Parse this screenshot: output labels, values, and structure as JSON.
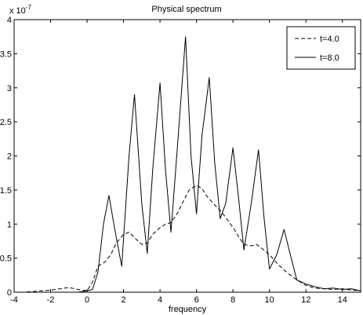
{
  "chart_data": {
    "type": "line",
    "title": "Physical spectrum",
    "xlabel": "frequency",
    "ylabel": "",
    "xlim": [
      -4,
      15
    ],
    "ylim": [
      0,
      4
    ],
    "y_multiplier_label": "x 10",
    "y_multiplier_exponent": "-7",
    "xticks": [
      "-4",
      "-2",
      "0",
      "2",
      "4",
      "6",
      "8",
      "10",
      "12",
      "14"
    ],
    "xtick_values": [
      -4,
      -2,
      0,
      2,
      4,
      6,
      8,
      10,
      12,
      14
    ],
    "yticks": [
      "0",
      "0.5",
      "1",
      "1.5",
      "2",
      "2.5",
      "3",
      "3.5",
      "4"
    ],
    "ytick_values": [
      0,
      0.5,
      1,
      1.5,
      2,
      2.5,
      3,
      3.5,
      4
    ],
    "grid": false,
    "legend_position": "top-right",
    "series": [
      {
        "name": "t=4.0",
        "style": "dashed",
        "color": "#000000",
        "x": [
          -4,
          -3.5,
          -3,
          -2.5,
          -2,
          -1.5,
          -1,
          -0.5,
          0,
          0.3,
          0.6,
          1,
          1.3,
          1.6,
          2,
          2.3,
          2.6,
          3,
          3.3,
          3.6,
          4,
          4.3,
          4.6,
          5,
          5.3,
          5.6,
          6,
          6.3,
          6.6,
          7,
          7.3,
          7.6,
          8,
          8.3,
          8.6,
          9,
          9.3,
          9.6,
          10,
          10.5,
          11,
          11.5,
          12,
          12.5,
          13,
          13.5,
          14,
          14.5,
          15
        ],
        "y": [
          0.0,
          0.0,
          0.01,
          0.02,
          0.03,
          0.05,
          0.07,
          0.04,
          0.02,
          0.15,
          0.38,
          0.45,
          0.55,
          0.72,
          0.85,
          0.88,
          0.8,
          0.7,
          0.72,
          0.85,
          0.95,
          1.0,
          1.02,
          1.18,
          1.35,
          1.5,
          1.57,
          1.52,
          1.4,
          1.28,
          1.2,
          1.1,
          0.95,
          0.82,
          0.7,
          0.68,
          0.7,
          0.64,
          0.55,
          0.4,
          0.28,
          0.18,
          0.1,
          0.06,
          0.05,
          0.04,
          0.05,
          0.03,
          0.02
        ]
      },
      {
        "name": "t=8.0",
        "style": "solid",
        "color": "#000000",
        "x": [
          -4,
          -3.5,
          -3,
          -2.5,
          -2,
          -1.5,
          -1,
          -0.5,
          0,
          0.3,
          0.6,
          0.9,
          1.2,
          1.5,
          1.9,
          2.3,
          2.6,
          3.0,
          3.3,
          3.6,
          4.0,
          4.3,
          4.6,
          5.0,
          5.4,
          5.7,
          6.0,
          6.3,
          6.7,
          7.0,
          7.3,
          7.6,
          8.0,
          8.3,
          8.6,
          9.0,
          9.4,
          9.7,
          10.0,
          10.4,
          10.8,
          11.1,
          11.5,
          12,
          12.5,
          13,
          13.5,
          14,
          14.5,
          15
        ],
        "y": [
          0.0,
          0.0,
          0.0,
          0.0,
          0.0,
          0.0,
          0.0,
          0.0,
          0.02,
          0.04,
          0.3,
          1.0,
          1.42,
          0.95,
          0.38,
          2.0,
          2.9,
          1.3,
          0.57,
          1.8,
          3.07,
          1.8,
          0.88,
          2.3,
          3.75,
          2.0,
          1.15,
          2.3,
          3.15,
          1.9,
          1.08,
          1.3,
          2.12,
          1.4,
          0.62,
          1.3,
          2.09,
          1.1,
          0.34,
          0.55,
          0.92,
          0.6,
          0.18,
          0.12,
          0.08,
          0.05,
          0.06,
          0.04,
          0.05,
          0.02
        ]
      }
    ]
  }
}
